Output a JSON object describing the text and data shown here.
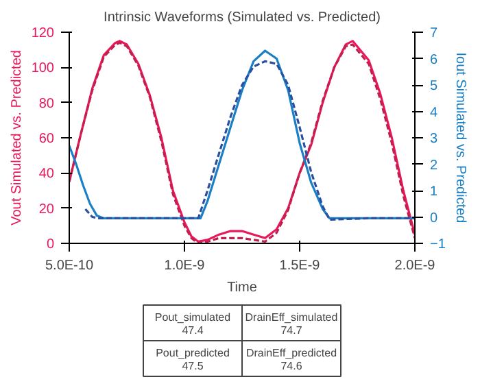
{
  "chart_data": {
    "type": "line",
    "title": "Intrinsic Waveforms (Simulated vs. Predicted)",
    "xlabel": "Time",
    "ylabel": "Vout Simulated vs. Predicted",
    "y2label": "Iout Simulated vs. Predicted",
    "xlim": [
      5e-10,
      2e-09
    ],
    "xticks": [
      {
        "value": 5e-10,
        "label": "5.0E-10"
      },
      {
        "value": 1e-09,
        "label": "1.0E-9"
      },
      {
        "value": 1.5e-09,
        "label": "1.5E-9"
      },
      {
        "value": 2e-09,
        "label": "2.0E-9"
      }
    ],
    "ylim": [
      0,
      120
    ],
    "yticks": [
      0,
      20,
      40,
      60,
      80,
      100,
      120
    ],
    "y2lim": [
      -1,
      7
    ],
    "y2ticks": [
      -1,
      0,
      1,
      2,
      3,
      4,
      5,
      6,
      7
    ],
    "grid": false,
    "series": [
      {
        "color": "#e8185a",
        "line_style": "solid",
        "x": [
          5e-10,
          5.5e-10,
          6e-10,
          6.5e-10,
          7e-10,
          7.2e-10,
          7.5e-10,
          8e-10,
          8.5e-10,
          9e-10,
          9.5e-10,
          1e-09,
          1.03e-09,
          1.06e-09,
          1.1e-09,
          1.15e-09,
          1.2e-09,
          1.25e-09,
          1.3e-09,
          1.35e-09,
          1.4e-09,
          1.45e-09,
          1.5e-09,
          1.55e-09,
          1.6e-09,
          1.65e-09,
          1.7e-09,
          1.73e-09,
          1.8e-09,
          1.85e-09,
          1.9e-09,
          1.95e-09,
          2e-09
        ],
        "values": [
          35,
          62,
          88,
          107,
          114,
          115,
          113,
          102,
          84,
          60,
          30,
          12,
          4,
          1,
          2,
          5,
          7,
          7,
          5,
          3,
          8,
          20,
          40,
          56,
          80,
          100,
          113,
          115,
          104,
          85,
          60,
          30,
          5
        ]
      },
      {
        "color": "#c0204e",
        "line_style": "dashed",
        "x": [
          5e-10,
          5.5e-10,
          6e-10,
          6.5e-10,
          7e-10,
          7.2e-10,
          7.5e-10,
          8e-10,
          8.5e-10,
          9e-10,
          9.5e-10,
          1e-09,
          1.03e-09,
          1.06e-09,
          1.1e-09,
          1.15e-09,
          1.2e-09,
          1.25e-09,
          1.3e-09,
          1.35e-09,
          1.4e-09,
          1.45e-09,
          1.5e-09,
          1.55e-09,
          1.6e-09,
          1.65e-09,
          1.7e-09,
          1.73e-09,
          1.8e-09,
          1.85e-09,
          1.9e-09,
          1.95e-09,
          2e-09
        ],
        "values": [
          35,
          62,
          87,
          106,
          113,
          114,
          112,
          101,
          83,
          58,
          28,
          10,
          3,
          0,
          1,
          3,
          3,
          3,
          2,
          1,
          6,
          19,
          40,
          57,
          81,
          100,
          112,
          113,
          102,
          82,
          57,
          27,
          3
        ]
      },
      {
        "color": "#1a7fc4",
        "line_style": "solid",
        "axis": "y2",
        "x": [
          5e-10,
          5.3e-10,
          5.6e-10,
          5.9e-10,
          6.2e-10,
          6.5e-10,
          8e-10,
          1e-09,
          1.07e-09,
          1.1e-09,
          1.15e-09,
          1.2e-09,
          1.25e-09,
          1.3e-09,
          1.35e-09,
          1.4e-09,
          1.45e-09,
          1.5e-09,
          1.55e-09,
          1.6e-09,
          1.63e-09,
          1.8e-09,
          2e-09
        ],
        "values": [
          2.7,
          2.0,
          1.2,
          0.5,
          0.05,
          -0.05,
          -0.05,
          -0.05,
          -0.05,
          0.6,
          2.0,
          3.4,
          4.8,
          5.9,
          6.3,
          6.0,
          4.8,
          2.8,
          1.3,
          0.3,
          -0.05,
          -0.05,
          -0.05
        ]
      },
      {
        "color": "#2a4ea0",
        "line_style": "dashed",
        "axis": "y2",
        "x": [
          5.7e-10,
          6e-10,
          6.3e-10,
          8e-10,
          1e-09,
          1.06e-09,
          1.1e-09,
          1.15e-09,
          1.2e-09,
          1.25e-09,
          1.3e-09,
          1.35e-09,
          1.4e-09,
          1.45e-09,
          1.5e-09,
          1.55e-09,
          1.6e-09,
          1.63e-09,
          1.8e-09,
          2e-09
        ],
        "values": [
          0.3,
          0.0,
          -0.05,
          -0.05,
          -0.05,
          -0.05,
          1.0,
          2.4,
          3.8,
          5.0,
          5.7,
          5.9,
          5.8,
          5.0,
          3.4,
          1.7,
          0.4,
          -0.1,
          -0.05,
          -0.05
        ]
      }
    ],
    "annotations": [
      "Pout_simulated\n47.4",
      "DrainEff_simulated\n74.7",
      "Pout_predicted\n47.5",
      "DrainEff_predicted\n74.6"
    ]
  }
}
